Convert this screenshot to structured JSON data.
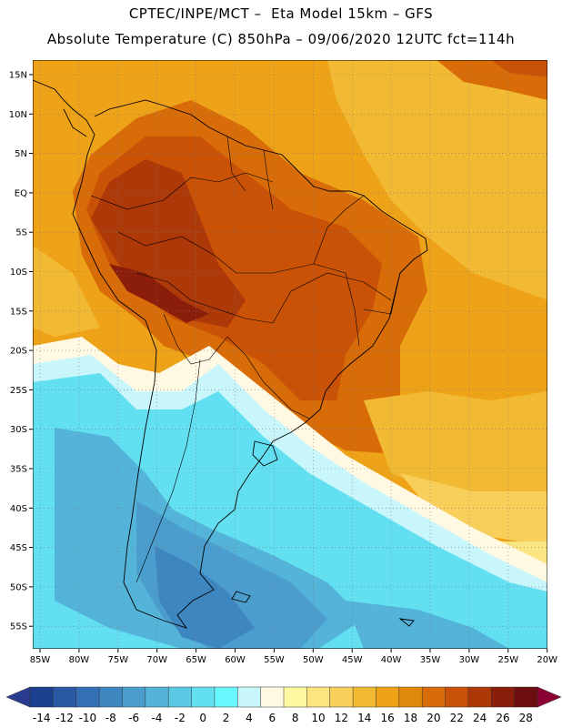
{
  "header": {
    "line1": "CPTEC/INPE/MCT –  Eta Model 15km – GFS",
    "line2": "Absolute Temperature (C) 850hPa – 09/06/2020 12UTC fct=114h"
  },
  "map": {
    "lat_labels": [
      "15N",
      "10N",
      "5N",
      "EQ",
      "5S",
      "10S",
      "15S",
      "20S",
      "25S",
      "30S",
      "35S",
      "40S",
      "45S",
      "50S",
      "55S"
    ],
    "lon_labels": [
      "85W",
      "80W",
      "75W",
      "70W",
      "65W",
      "60W",
      "55W",
      "50W",
      "45W",
      "40W",
      "35W",
      "30W",
      "25W",
      "20W"
    ]
  },
  "colorbar": {
    "labels": [
      "-14",
      "-12",
      "-10",
      "-8",
      "-6",
      "-4",
      "-2",
      "0",
      "2",
      "4",
      "6",
      "8",
      "10",
      "12",
      "14",
      "16",
      "18",
      "20",
      "22",
      "24",
      "26",
      "28"
    ],
    "colors": [
      "#1d3f8f",
      "#2a5aa6",
      "#3370b4",
      "#3e86c0",
      "#4a9dcc",
      "#54b3d8",
      "#5cc9e4",
      "#62dff0",
      "#6af8ff",
      "#c8f6fb",
      "#fff8e2",
      "#fef8a0",
      "#fbe580",
      "#f7cf5a",
      "#f2b933",
      "#eea217",
      "#e08a0b",
      "#d86c08",
      "#c95206",
      "#ad3808",
      "#8a1e0b",
      "#6d0f10"
    ],
    "min_color": "#2a3c8f",
    "max_color": "#8a0032"
  }
}
